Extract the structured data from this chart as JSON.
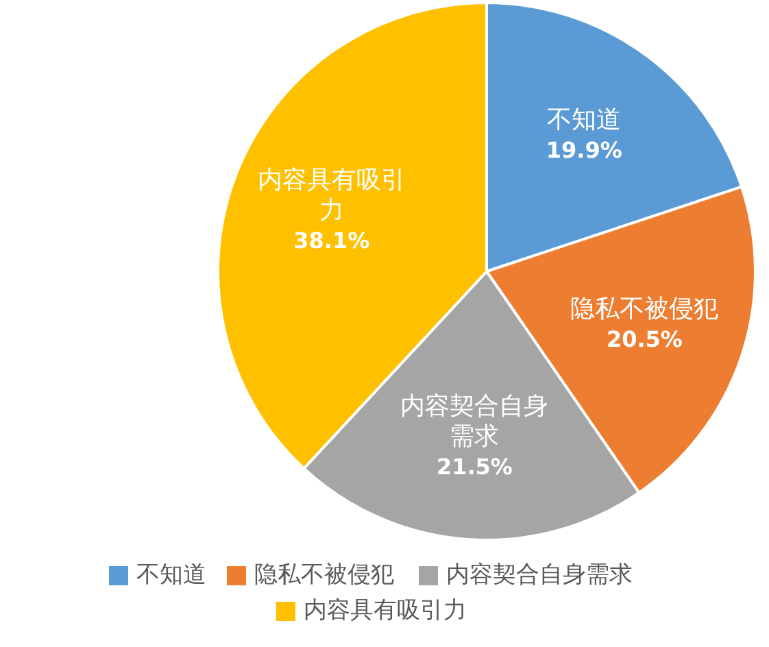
{
  "chart_data": {
    "type": "pie",
    "categories": [
      "不知道",
      "隐私不被侵犯",
      "内容契合自身需求",
      "内容具有吸引力"
    ],
    "values": [
      19.9,
      20.5,
      21.5,
      38.1
    ],
    "colors": [
      "#5b9bd5",
      "#ed7d31",
      "#a5a5a5",
      "#ffc000"
    ],
    "value_labels": [
      "19.9%",
      "20.5%",
      "21.5%",
      "38.1%"
    ],
    "legend": "bottom"
  }
}
